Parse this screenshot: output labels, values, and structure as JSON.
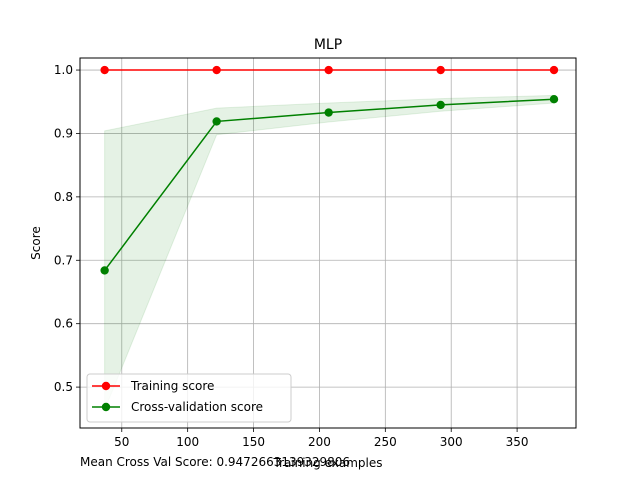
{
  "chart_data": {
    "type": "line",
    "title": "MLP",
    "xlabel": "Training examples",
    "ylabel": "Score",
    "xlim": [
      18.3,
      394.7
    ],
    "ylim": [
      0.4355,
      1.019
    ],
    "xticks": [
      50,
      100,
      150,
      200,
      250,
      300,
      350
    ],
    "yticks": [
      0.5,
      0.6,
      0.7,
      0.8,
      0.9,
      1.0
    ],
    "xtick_labels": [
      "50",
      "100",
      "150",
      "200",
      "250",
      "300",
      "350"
    ],
    "ytick_labels": [
      "0.5",
      "0.6",
      "0.7",
      "0.8",
      "0.9",
      "1.0"
    ],
    "grid": true,
    "legend_position": "lower-left",
    "x": [
      37,
      122,
      207,
      292,
      378
    ],
    "series": [
      {
        "name": "Training score",
        "color": "#ff0000",
        "values": [
          1.0,
          1.0,
          1.0,
          1.0,
          1.0
        ],
        "band_lower": [
          1.0,
          1.0,
          1.0,
          1.0,
          1.0
        ],
        "band_upper": [
          1.0,
          1.0,
          1.0,
          1.0,
          1.0
        ]
      },
      {
        "name": "Cross-validation score",
        "color": "#008000",
        "values": [
          0.684,
          0.919,
          0.933,
          0.945,
          0.954
        ],
        "band_lower": [
          0.464,
          0.898,
          0.918,
          0.935,
          0.948
        ],
        "band_upper": [
          0.904,
          0.94,
          0.948,
          0.955,
          0.96
        ]
      }
    ],
    "annotation": "Mean Cross Val Score: 0.9472663139329806"
  }
}
